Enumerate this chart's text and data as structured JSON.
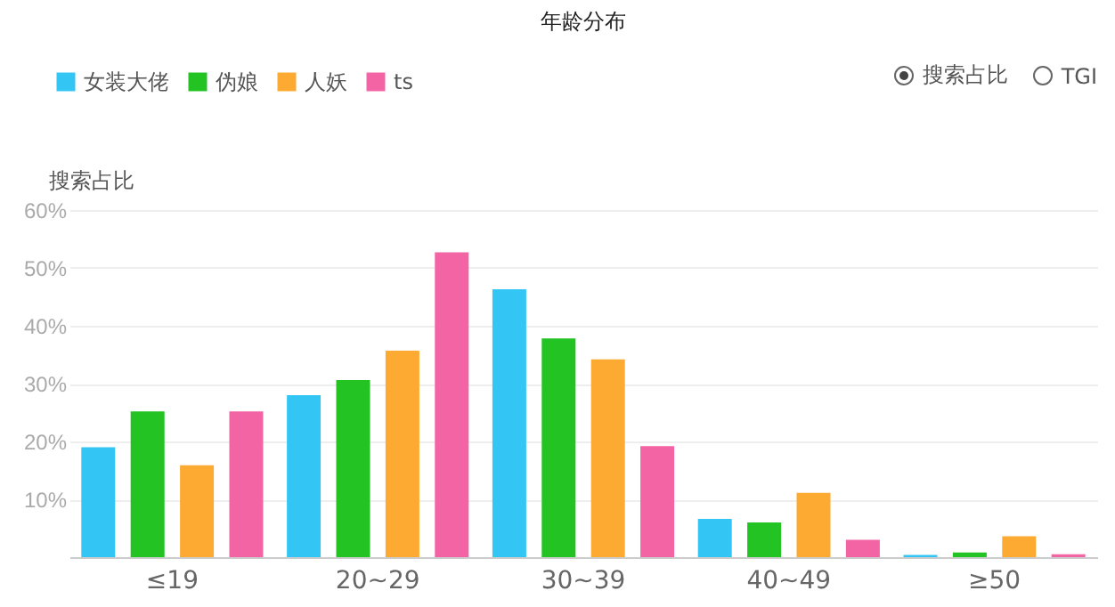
{
  "chart_data": {
    "type": "bar",
    "title": "年龄分布",
    "ylabel": "搜索占比",
    "categories": [
      "≤19",
      "20~29",
      "30~39",
      "40~49",
      "≥50"
    ],
    "series": [
      {
        "name": "女装大佬",
        "color": "#33c6f4",
        "values": [
          19.0,
          28.0,
          46.3,
          6.6,
          0.4
        ]
      },
      {
        "name": "伪娘",
        "color": "#22c322",
        "values": [
          25.2,
          30.6,
          37.8,
          6.0,
          0.8
        ]
      },
      {
        "name": "人妖",
        "color": "#fdaa33",
        "values": [
          15.9,
          35.7,
          34.2,
          11.1,
          3.6
        ]
      },
      {
        "name": "ts",
        "color": "#f264a4",
        "values": [
          25.2,
          52.7,
          19.2,
          3.0,
          0.5
        ]
      }
    ],
    "ylim": [
      0,
      60
    ],
    "yticks": [
      {
        "value": 0,
        "label": null
      },
      {
        "value": 10,
        "label": "10%"
      },
      {
        "value": 20,
        "label": "20%"
      },
      {
        "value": 30,
        "label": "30%"
      },
      {
        "value": 40,
        "label": "40%"
      },
      {
        "value": 50,
        "label": "50%"
      },
      {
        "value": 60,
        "label": "60%"
      }
    ],
    "grid": "y",
    "legend": "top left",
    "annotations": [
      "搜索占比",
      "TGI"
    ]
  }
}
